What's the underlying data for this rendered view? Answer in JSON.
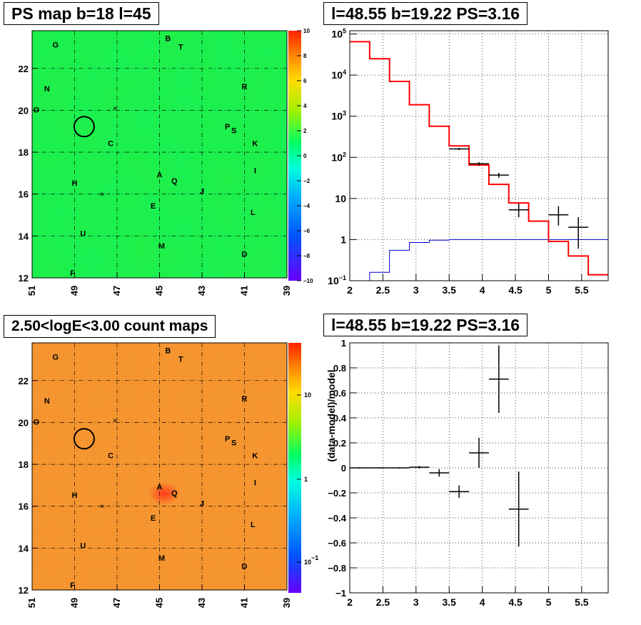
{
  "panels": {
    "tl_title": "PS map b=18 l=45",
    "tr_title": "l=48.55 b=19.22 PS=3.16",
    "bl_title": "2.50<logE<3.00 count maps",
    "br_title": "l=48.55 b=19.22 PS=3.16"
  },
  "colors": {
    "map_green": "#22ee44",
    "count_orange": "#f5962a",
    "model_line": "#ff0000",
    "background_line": "#0000cc",
    "data_marker": "#000000"
  },
  "chart_data": [
    {
      "type": "heatmap",
      "title": "PS map b=18 l=45",
      "xlabel": "",
      "ylabel": "",
      "x_ticks": [
        "51",
        "49",
        "47",
        "45",
        "43",
        "41",
        "39"
      ],
      "y_ticks": [
        "12",
        "14",
        "16",
        "18",
        "20",
        "22"
      ],
      "xlim": [
        51,
        39
      ],
      "ylim": [
        12,
        23.8
      ],
      "colorbar_ticks": [
        "10",
        "8",
        "6",
        "4",
        "2",
        "0",
        "−2",
        "−4",
        "−6",
        "−8",
        "−10"
      ],
      "colorbar_range": [
        -10,
        10
      ],
      "sources": [
        {
          "name": "G",
          "l": 49.9,
          "b": 23.0
        },
        {
          "name": "B",
          "l": 44.6,
          "b": 23.3
        },
        {
          "name": "T",
          "l": 44.0,
          "b": 22.9
        },
        {
          "name": "N",
          "l": 50.3,
          "b": 20.9
        },
        {
          "name": "R",
          "l": 41.0,
          "b": 21.0
        },
        {
          "name": "O",
          "l": 50.8,
          "b": 19.9
        },
        {
          "name": "P",
          "l": 41.8,
          "b": 19.1
        },
        {
          "name": "S",
          "l": 41.5,
          "b": 18.9
        },
        {
          "name": "C",
          "l": 47.3,
          "b": 18.3
        },
        {
          "name": "K",
          "l": 40.5,
          "b": 18.3
        },
        {
          "name": "I",
          "l": 40.5,
          "b": 17.0
        },
        {
          "name": "A",
          "l": 45.0,
          "b": 16.8
        },
        {
          "name": "Q",
          "l": 44.3,
          "b": 16.5
        },
        {
          "name": "H",
          "l": 49.0,
          "b": 16.4
        },
        {
          "name": "J",
          "l": 43.0,
          "b": 16.0
        },
        {
          "name": "E",
          "l": 45.3,
          "b": 15.3
        },
        {
          "name": "L",
          "l": 40.6,
          "b": 15.0
        },
        {
          "name": "U",
          "l": 48.6,
          "b": 14.0
        },
        {
          "name": "M",
          "l": 44.9,
          "b": 13.4
        },
        {
          "name": "D",
          "l": 41.0,
          "b": 13.0
        },
        {
          "name": "F",
          "l": 49.1,
          "b": 12.1
        }
      ],
      "circle": {
        "l": 48.55,
        "b": 19.22
      }
    },
    {
      "type": "line",
      "title": "l=48.55 b=19.22 PS=3.16",
      "xlabel": "",
      "ylabel": "",
      "x_ticks": [
        "2",
        "2.5",
        "3",
        "3.5",
        "4",
        "4.5",
        "5",
        "5.5"
      ],
      "y_ticks": [
        "10^-1",
        "1",
        "10",
        "10^2",
        "10^3",
        "10^4",
        "10^5"
      ],
      "xlim": [
        2,
        5.9
      ],
      "ylim": [
        0.1,
        120000
      ],
      "y_scale": "log",
      "grid": true,
      "series": [
        {
          "kind": "step",
          "x_edges": [
            2.0,
            2.3,
            2.6,
            2.9,
            3.2,
            3.5,
            3.8,
            4.1,
            4.4,
            4.7,
            5.0,
            5.3,
            5.6,
            5.9
          ],
          "values": [
            65000,
            25000,
            7000,
            1900,
            570,
            190,
            65,
            22,
            7.8,
            2.8,
            0.9,
            0.4,
            0.14
          ]
        },
        {
          "kind": "step",
          "x_edges": [
            2.0,
            2.3,
            2.6,
            2.9,
            3.2,
            3.5,
            3.8,
            4.1,
            4.4,
            4.7,
            5.0,
            5.3,
            5.6,
            5.9
          ],
          "values": [
            0.1,
            0.16,
            0.55,
            0.85,
            0.97,
            1.0,
            1.0,
            1.0,
            1.0,
            1.0,
            1.0,
            1.0,
            1.0
          ]
        },
        {
          "kind": "errorbar",
          "x": [
            3.65,
            3.95,
            4.25,
            4.55,
            5.15,
            5.45
          ],
          "y": [
            160,
            70,
            37,
            5.3,
            4.0,
            2.0
          ],
          "xerr": [
            0.15,
            0.15,
            0.15,
            0.15,
            0.15,
            0.15
          ],
          "ylo": [
            150,
            63,
            32,
            3.5,
            2.2,
            0.6
          ],
          "yhi": [
            170,
            77,
            42,
            7.5,
            6.5,
            3.5
          ]
        }
      ]
    },
    {
      "type": "heatmap",
      "title": "2.50<logE<3.00 count maps",
      "xlabel": "",
      "ylabel": "",
      "x_ticks": [
        "51",
        "49",
        "47",
        "45",
        "43",
        "41",
        "39"
      ],
      "y_ticks": [
        "12",
        "14",
        "16",
        "18",
        "20",
        "22"
      ],
      "xlim": [
        51,
        39
      ],
      "ylim": [
        12,
        23.8
      ],
      "colorbar_ticks": [
        "10",
        "1",
        "10^-1"
      ],
      "colorbar_scale": "log",
      "hotspot": {
        "l": 45.0,
        "b": 16.8
      }
    },
    {
      "type": "scatter",
      "title": "l=48.55 b=19.22 PS=3.16",
      "xlabel": "",
      "ylabel": "(data-model)/model",
      "x_ticks": [
        "2",
        "2.5",
        "3",
        "3.5",
        "4",
        "4.5",
        "5",
        "5.5"
      ],
      "y_ticks": [
        "−1",
        "−0.8",
        "−0.6",
        "−0.4",
        "−0.2",
        "0",
        "0.2",
        "0.4",
        "0.6",
        "0.8",
        "1"
      ],
      "xlim": [
        2,
        5.9
      ],
      "ylim": [
        -1,
        1
      ],
      "grid": true,
      "points": [
        {
          "x": 2.15,
          "y": 0.0,
          "xerr": 0.15,
          "yerr": 0.005
        },
        {
          "x": 2.45,
          "y": 0.0,
          "xerr": 0.15,
          "yerr": 0.005
        },
        {
          "x": 2.75,
          "y": 0.0,
          "xerr": 0.15,
          "yerr": 0.005
        },
        {
          "x": 3.05,
          "y": 0.005,
          "xerr": 0.15,
          "yerr": 0.01
        },
        {
          "x": 3.35,
          "y": -0.04,
          "xerr": 0.15,
          "yerr": 0.03
        },
        {
          "x": 3.65,
          "y": -0.19,
          "xerr": 0.15,
          "yerr": 0.05
        },
        {
          "x": 3.95,
          "y": 0.12,
          "xerr": 0.15,
          "yerr": 0.12
        },
        {
          "x": 4.25,
          "y": 0.71,
          "xerr": 0.15,
          "yerr": 0.27
        },
        {
          "x": 4.55,
          "y": -0.33,
          "xerr": 0.15,
          "yerr": 0.3
        }
      ]
    }
  ]
}
